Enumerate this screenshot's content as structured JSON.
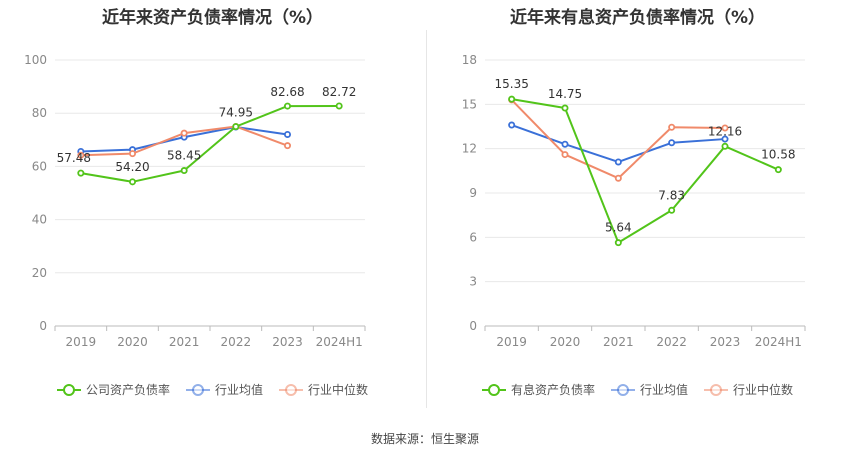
{
  "source_text": "数据来源：恒生聚源",
  "colors": {
    "company": "#52c41a",
    "avg": "#3a70d8",
    "median": "#f08a6a",
    "grid": "#e8e8e8",
    "axis": "#888888"
  },
  "chart_data": [
    {
      "type": "line",
      "title": "近年来资产负债率情况（%）",
      "categories": [
        "2019",
        "2020",
        "2021",
        "2022",
        "2023",
        "2024H1"
      ],
      "y_ticks": [
        "0",
        "20",
        "40",
        "60",
        "80",
        "100"
      ],
      "ylim": [
        0,
        100
      ],
      "grid": true,
      "legend": "bottom-center",
      "series": [
        {
          "name": "公司资产负债率",
          "color": "#52c41a",
          "values": [
            57.48,
            54.2,
            58.45,
            74.95,
            82.68,
            82.72
          ],
          "labels": [
            "57.48",
            "54.20",
            "58.45",
            "74.95",
            "82.68",
            "82.72"
          ]
        },
        {
          "name": "行业均值",
          "color": "#3a70d8",
          "values": [
            65.6,
            66.3,
            71.0,
            74.8,
            72.0,
            null
          ]
        },
        {
          "name": "行业中位数",
          "color": "#f08a6a",
          "values": [
            64.2,
            64.8,
            72.5,
            75.0,
            67.8,
            null
          ]
        }
      ]
    },
    {
      "type": "line",
      "title": "近年来有息资产负债率情况（%）",
      "categories": [
        "2019",
        "2020",
        "2021",
        "2022",
        "2023",
        "2024H1"
      ],
      "y_ticks": [
        "0",
        "3",
        "6",
        "9",
        "12",
        "15",
        "18"
      ],
      "ylim": [
        0,
        18
      ],
      "grid": true,
      "legend": "bottom-center",
      "series": [
        {
          "name": "有息资产负债率",
          "color": "#52c41a",
          "values": [
            15.35,
            14.75,
            5.64,
            7.83,
            12.16,
            10.58
          ],
          "labels": [
            "15.35",
            "14.75",
            "5.64",
            "7.83",
            "12.16",
            "10.58"
          ]
        },
        {
          "name": "行业均值",
          "color": "#3a70d8",
          "values": [
            13.6,
            12.3,
            11.1,
            12.4,
            12.65,
            null
          ]
        },
        {
          "name": "行业中位数",
          "color": "#f08a6a",
          "values": [
            15.3,
            11.6,
            10.0,
            13.45,
            13.4,
            null
          ]
        }
      ]
    }
  ]
}
